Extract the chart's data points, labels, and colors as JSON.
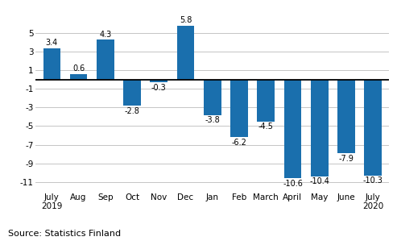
{
  "categories": [
    "July\n2019",
    "Aug",
    "Sep",
    "Oct",
    "Nov",
    "Dec",
    "Jan",
    "Feb",
    "March",
    "April",
    "May",
    "June",
    "July\n2020"
  ],
  "values": [
    3.4,
    0.6,
    4.3,
    -2.8,
    -0.3,
    5.8,
    -3.8,
    -6.2,
    -4.5,
    -10.6,
    -10.4,
    -7.9,
    -10.3
  ],
  "bar_color": "#1a6fad",
  "ylim": [
    -12,
    7
  ],
  "yticks": [
    -11,
    -9,
    -7,
    -5,
    -3,
    -1,
    1,
    3,
    5
  ],
  "source_text": "Source: Statistics Finland",
  "background_color": "#ffffff",
  "grid_color": "#bbbbbb",
  "label_fontsize": 7,
  "axis_fontsize": 7.5,
  "source_fontsize": 8
}
